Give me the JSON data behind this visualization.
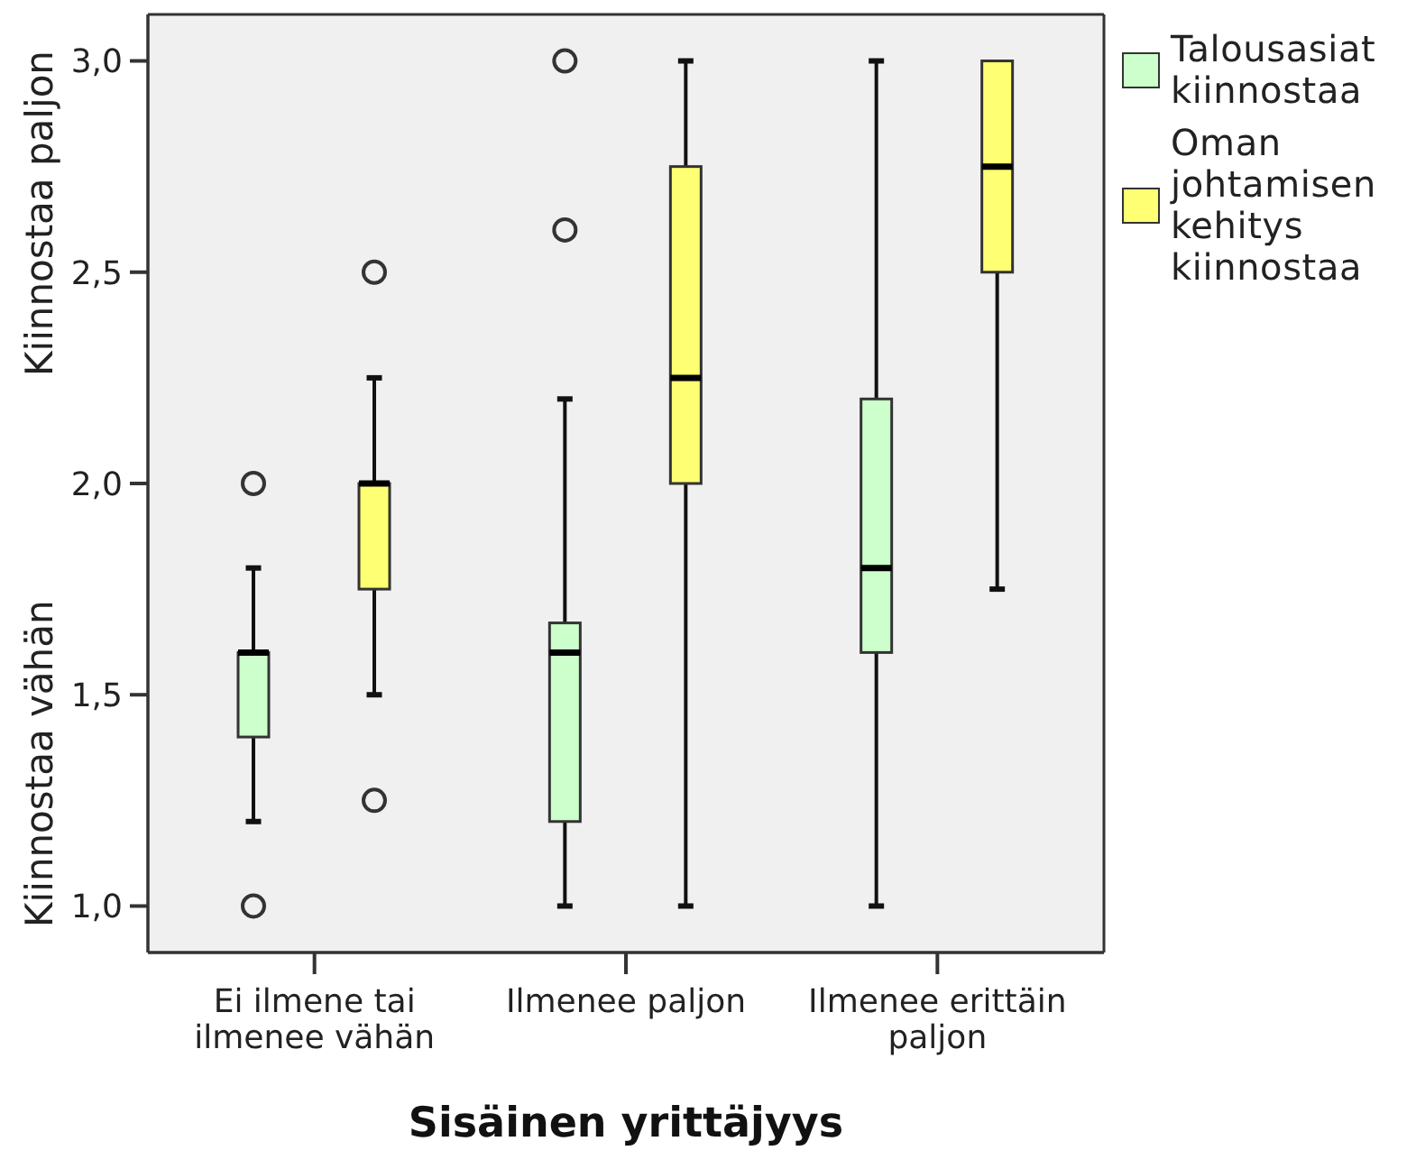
{
  "chart_data": {
    "type": "box",
    "xlabel": "Sisäinen yrittäjyys",
    "annotations": [
      "Kiinnostaa vähän",
      "Kiinnostaa paljon"
    ],
    "categories": [
      "Ei ilmene tai ilmenee vähän",
      "Ilmenee paljon",
      "Ilmenee erittäin paljon"
    ],
    "ylim": [
      0.89,
      3.11
    ],
    "yticks": [
      {
        "value": 1,
        "label": "1,0"
      },
      {
        "value": 1.5,
        "label": "1,5"
      },
      {
        "value": 2,
        "label": "2,0"
      },
      {
        "value": 2.5,
        "label": "2,5"
      },
      {
        "value": 3,
        "label": "3,0"
      }
    ],
    "legend": "right",
    "series": [
      {
        "name": "Talousasiat kiinnostaa",
        "color": "#ccffcc",
        "boxes": [
          {
            "low": 1.2,
            "q1": 1.4,
            "median": 1.6,
            "q3": 1.6,
            "high": 1.8,
            "outliers": [
              2.0,
              1.0
            ]
          },
          {
            "low": 1.0,
            "q1": 1.2,
            "median": 1.6,
            "q3": 1.67,
            "high": 2.2,
            "outliers": [
              2.6,
              3.0
            ]
          },
          {
            "low": 1.0,
            "q1": 1.6,
            "median": 1.8,
            "q3": 2.2,
            "high": 3.0
          }
        ]
      },
      {
        "name": "Oman johtamisen kehitys kiinnostaa",
        "color": "#ffff73",
        "boxes": [
          {
            "low": 1.5,
            "q1": 1.75,
            "median": 2.0,
            "q3": 2.0,
            "high": 2.25,
            "outliers": [
              2.5,
              1.25
            ]
          },
          {
            "low": 1.0,
            "q1": 2.0,
            "median": 2.25,
            "q3": 2.75,
            "high": 3.0
          },
          {
            "low": 1.75,
            "q1": 2.5,
            "median": 2.75,
            "q3": 3.0,
            "high": 3.0
          }
        ]
      }
    ]
  }
}
